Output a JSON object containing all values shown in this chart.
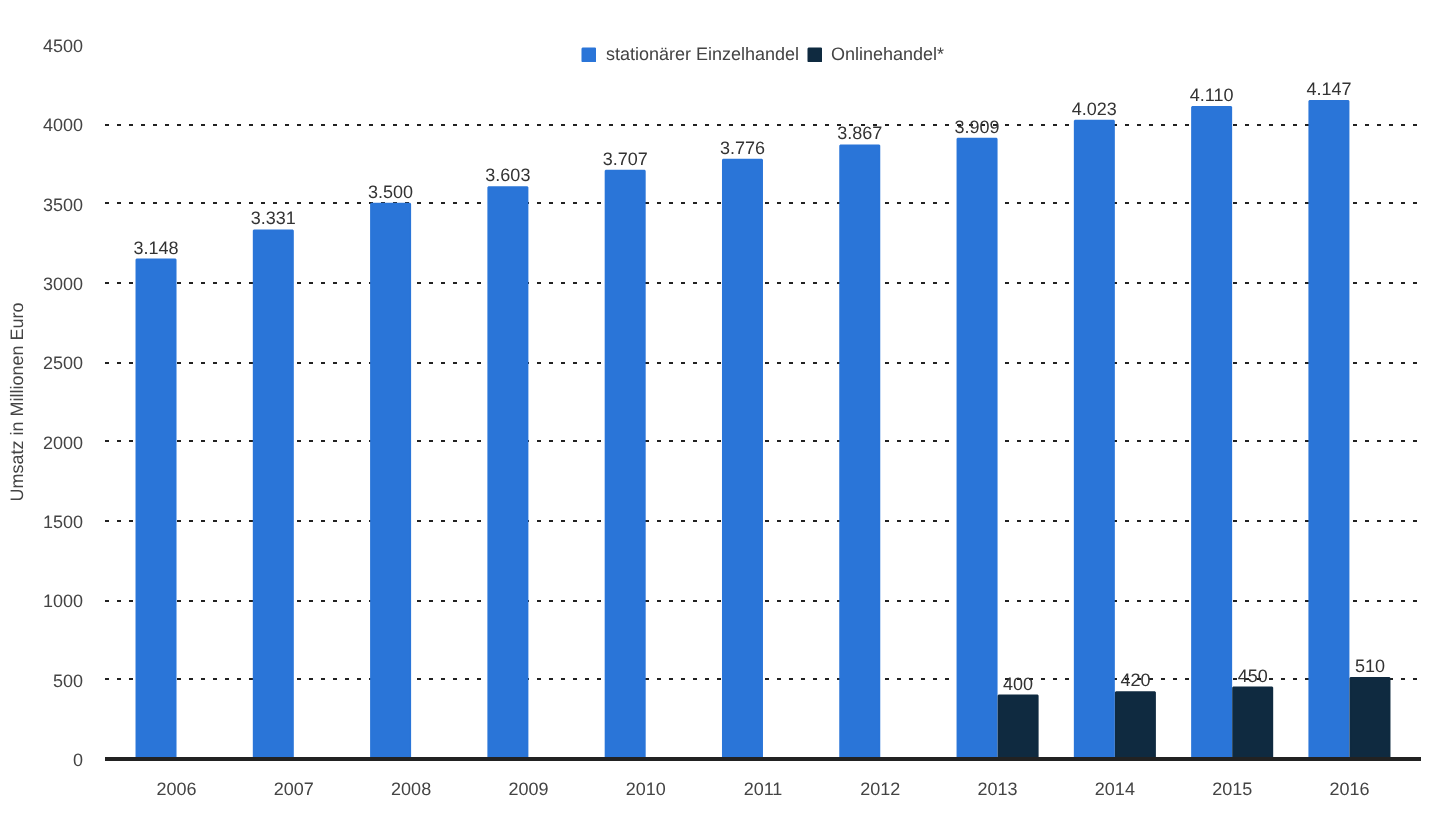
{
  "chart_data": {
    "type": "bar",
    "ylabel": "Umsatz in Millionen Euro",
    "categories": [
      "2006",
      "2007",
      "2008",
      "2009",
      "2010",
      "2011",
      "2012",
      "2013",
      "2014",
      "2015",
      "2016"
    ],
    "series": [
      {
        "name": "stationärer Einzelhandel",
        "color": "#2a75d8",
        "values": [
          3148,
          3331,
          3500,
          3603,
          3707,
          3776,
          3867,
          3909,
          4023,
          4110,
          4147
        ],
        "value_labels": [
          "3.148",
          "3.331",
          "3.500",
          "3.603",
          "3.707",
          "3.776",
          "3.867",
          "3.909",
          "4.023",
          "4.110",
          "4.147"
        ]
      },
      {
        "name": "Onlinehandel*",
        "color": "#0f2a40",
        "values": [
          null,
          null,
          null,
          null,
          null,
          null,
          null,
          400,
          420,
          450,
          510
        ],
        "value_labels": [
          null,
          null,
          null,
          null,
          null,
          null,
          null,
          "400",
          "420",
          "450",
          "510"
        ]
      }
    ],
    "ylim": [
      0,
      4500
    ],
    "yticks": [
      0,
      500,
      1000,
      1500,
      2000,
      2500,
      3000,
      3500,
      4000,
      4500
    ],
    "grid": "y",
    "legend": "top"
  }
}
